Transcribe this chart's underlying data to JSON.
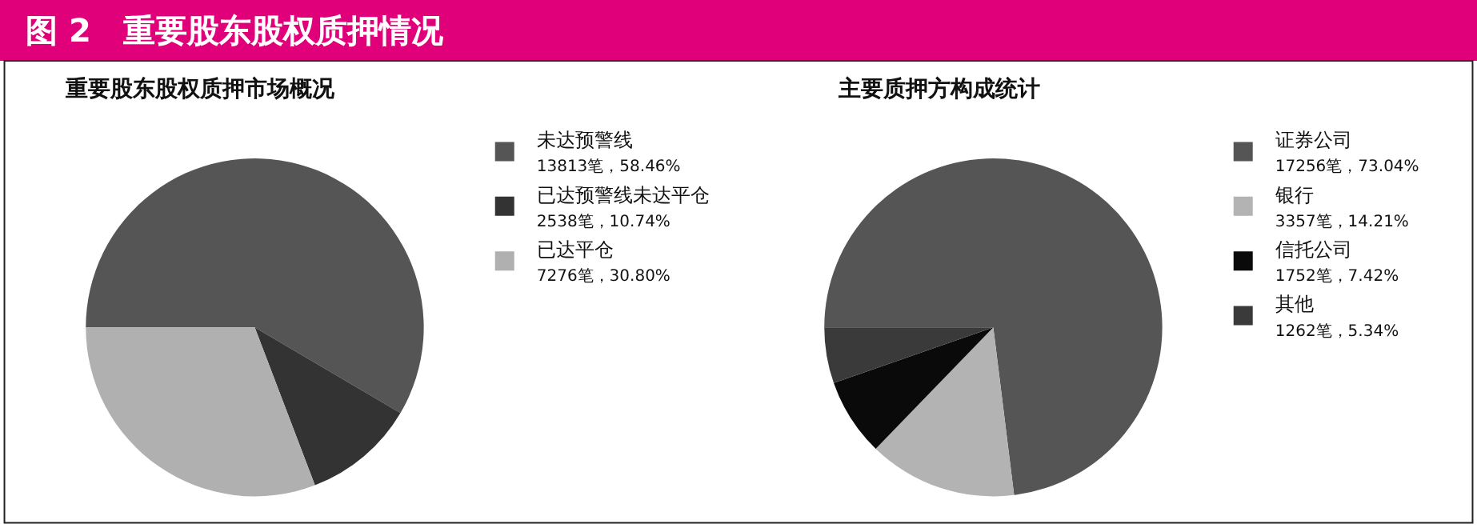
{
  "chart_data": [
    {
      "type": "pie",
      "title": "重要股东股权质押市场概况",
      "annotations": [
        "图 2　重要股东股权质押情况"
      ],
      "categories": [
        "未达预警线",
        "已达预警线未达平仓",
        "已达平仓"
      ],
      "values": [
        13813,
        2538,
        7276
      ],
      "value_labels": [
        "13813笔，58.46%",
        "2538笔，10.74%",
        "7276笔，30.80%"
      ],
      "colors": [
        "#555555",
        "#333333",
        "#b0b0b0"
      ],
      "legend": "right"
    },
    {
      "type": "pie",
      "title": "主要质押方构成统计",
      "categories": [
        "证券公司",
        "银行",
        "信托公司",
        "其他"
      ],
      "values": [
        17256,
        3357,
        1752,
        1262
      ],
      "value_labels": [
        "17256笔，73.04%",
        "3357笔，14.21%",
        "1752笔，7.42%",
        "1262笔，5.34%"
      ],
      "colors": [
        "#555555",
        "#b3b3b3",
        "#0a0a0a",
        "#3a3a3a"
      ],
      "legend": "right"
    }
  ]
}
